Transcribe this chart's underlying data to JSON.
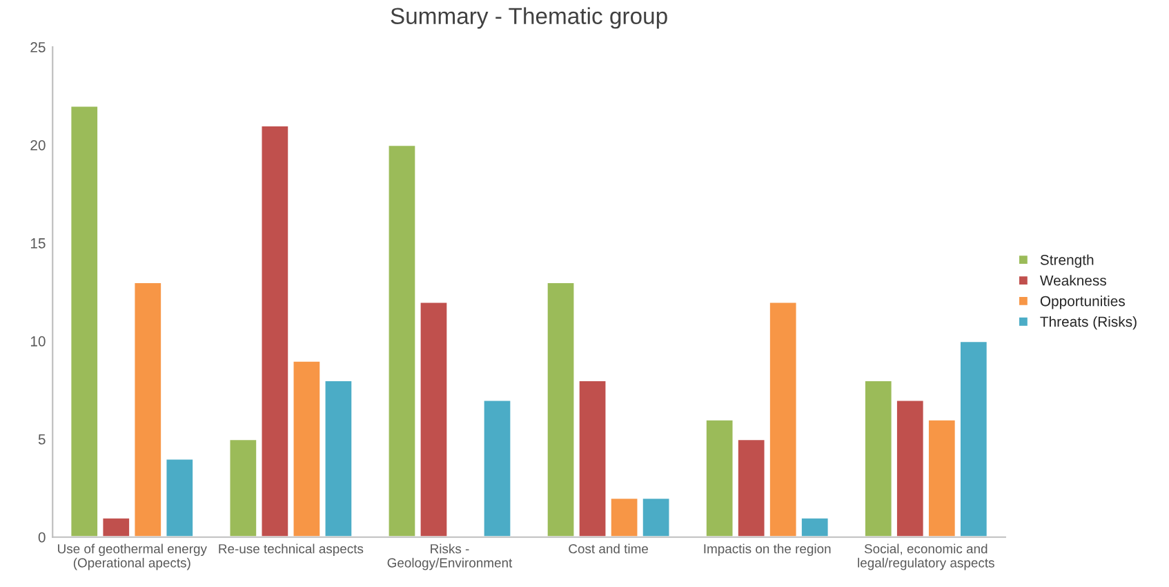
{
  "chart_data": {
    "type": "bar",
    "title": "Summary - Thematic group",
    "categories": [
      "Use of geothermal energy\n(Operational apects)",
      "Re-use technical aspects",
      "Risks -\nGeology/Environment",
      "Cost and time",
      "Impactis on the region",
      "Social, economic and\nlegal/regulatory aspects"
    ],
    "series": [
      {
        "name": "Strength",
        "color": "#9bbb59",
        "values": [
          22,
          5,
          20,
          13,
          6,
          8
        ]
      },
      {
        "name": "Weakness",
        "color": "#c0504d",
        "values": [
          1,
          21,
          12,
          8,
          5,
          7
        ]
      },
      {
        "name": "Opportunities",
        "color": "#f79646",
        "values": [
          13,
          9,
          null,
          2,
          12,
          6
        ]
      },
      {
        "name": "Threats (Risks)",
        "color": "#4bacc6",
        "values": [
          4,
          8,
          7,
          2,
          1,
          10
        ]
      }
    ],
    "ylim": [
      0,
      25
    ],
    "yticks": [
      0,
      5,
      10,
      15,
      20,
      25
    ],
    "grid": false,
    "legend": "right"
  }
}
